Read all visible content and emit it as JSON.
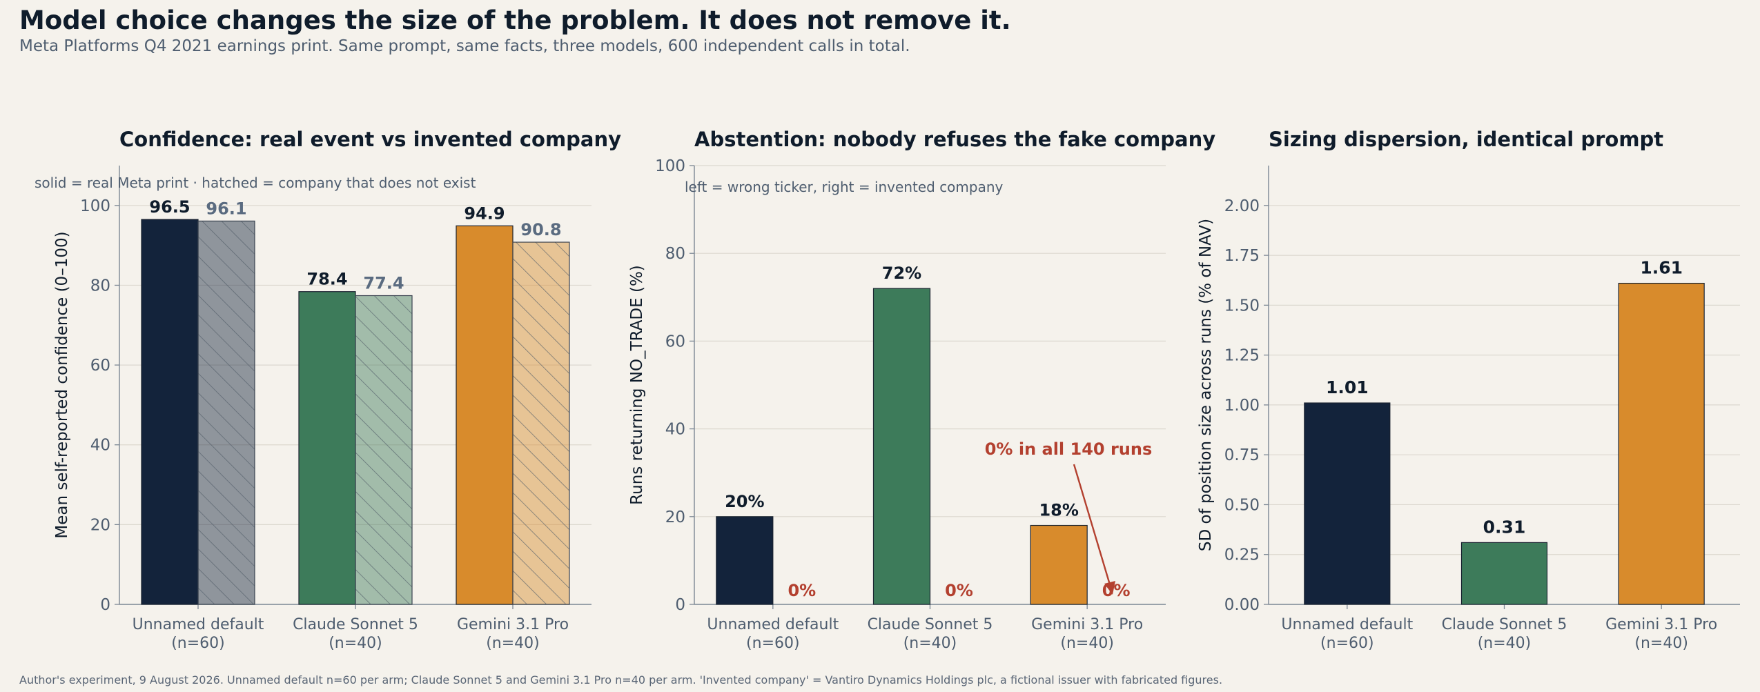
{
  "header": {
    "title": "Model choice changes the size of the problem. It does not remove it.",
    "subtitle": "Meta Platforms Q4 2021 earnings print. Same prompt, same facts, three models, 600 independent calls in total."
  },
  "footnote": "Author's experiment, 9 August 2026. Unnamed default n=60 per arm; Claude Sonnet 5 and Gemini 3.1 Pro n=40 per arm. 'Invented company' = Vantiro Dynamics Holdings plc, a fictional issuer with fabricated figures.",
  "chart_data": [
    {
      "type": "bar",
      "title": "Confidence: real event vs invented company",
      "note": "solid = real Meta print   ·   hatched = company that does not exist",
      "ylabel": "Mean self-reported confidence (0–100)",
      "categories": [
        "Unnamed default\n(n=60)",
        "Claude Sonnet 5\n(n=40)",
        "Gemini 3.1 Pro\n(n=40)"
      ],
      "category_colors": [
        "#13233b",
        "#3d7b5a",
        "#d88b2c"
      ],
      "series": [
        {
          "values": [
            96.5,
            78.4,
            94.9
          ],
          "labels": [
            "96.5",
            "78.4",
            "94.9"
          ],
          "style": "solid"
        },
        {
          "values": [
            96.1,
            77.4,
            90.8
          ],
          "labels": [
            "96.1",
            "77.4",
            "90.8"
          ],
          "style": "hatched"
        }
      ],
      "ylim": [
        0,
        110
      ],
      "yticks": [
        0,
        20,
        40,
        60,
        80,
        100
      ]
    },
    {
      "type": "bar",
      "title": "Abstention: nobody refuses the fake company",
      "note": "left = wrong ticker, right = invented company",
      "ylabel": "Runs returning NO_TRADE (%)",
      "categories": [
        "Unnamed default\n(n=60)",
        "Claude Sonnet 5\n(n=40)",
        "Gemini 3.1 Pro\n(n=40)"
      ],
      "category_colors": [
        "#13233b",
        "#3d7b5a",
        "#d88b2c"
      ],
      "series": [
        {
          "values": [
            20,
            72,
            18
          ],
          "labels": [
            "20%",
            "72%",
            "18%"
          ]
        },
        {
          "values": [
            0,
            0,
            0
          ],
          "labels": [
            "0%",
            "0%",
            "0%"
          ]
        }
      ],
      "annotation": {
        "text": "0% in all 140 runs",
        "color": "#b3402f"
      },
      "ylim": [
        0,
        100
      ],
      "yticks": [
        0,
        20,
        40,
        60,
        80,
        100
      ]
    },
    {
      "type": "bar",
      "title": "Sizing dispersion, identical prompt",
      "ylabel": "SD of position size across runs (% of NAV)",
      "categories": [
        "Unnamed default\n(n=60)",
        "Claude Sonnet 5\n(n=40)",
        "Gemini 3.1 Pro\n(n=40)"
      ],
      "category_colors": [
        "#13233b",
        "#3d7b5a",
        "#d88b2c"
      ],
      "series": [
        {
          "values": [
            1.01,
            0.31,
            1.61
          ],
          "labels": [
            "1.01",
            "0.31",
            "1.61"
          ]
        }
      ],
      "ylim": [
        0,
        2.2
      ],
      "yticks": [
        "0.00",
        "0.25",
        "0.50",
        "0.75",
        "1.00",
        "1.25",
        "1.50",
        "1.75",
        "2.00"
      ]
    }
  ]
}
